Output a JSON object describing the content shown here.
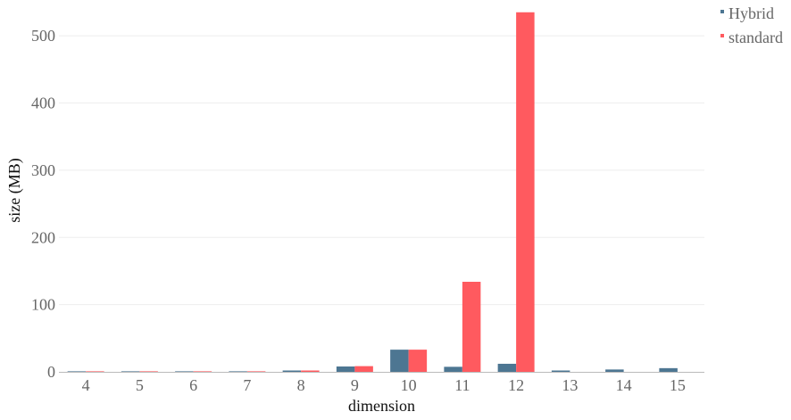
{
  "chart_data": {
    "type": "bar",
    "xlabel": "dimension",
    "ylabel": "size (MB)",
    "categories": [
      "4",
      "5",
      "6",
      "7",
      "8",
      "9",
      "10",
      "11",
      "12",
      "13",
      "14",
      "15"
    ],
    "yticks": [
      "0",
      "100",
      "200",
      "300",
      "400",
      "500"
    ],
    "ylim": [
      0,
      540
    ],
    "grid": true,
    "legend_position": "top-right",
    "series": [
      {
        "name": "Hybrid",
        "color": "#4d7692",
        "values": [
          0.2,
          0.3,
          0.5,
          0.8,
          2,
          8,
          33,
          7.5,
          12,
          2,
          3.5,
          5.5
        ]
      },
      {
        "name": "standard",
        "color": "#ff5a5f",
        "values": [
          0.2,
          0.3,
          0.5,
          0.8,
          2,
          8.5,
          33,
          134,
          535,
          null,
          null,
          null
        ]
      }
    ]
  }
}
